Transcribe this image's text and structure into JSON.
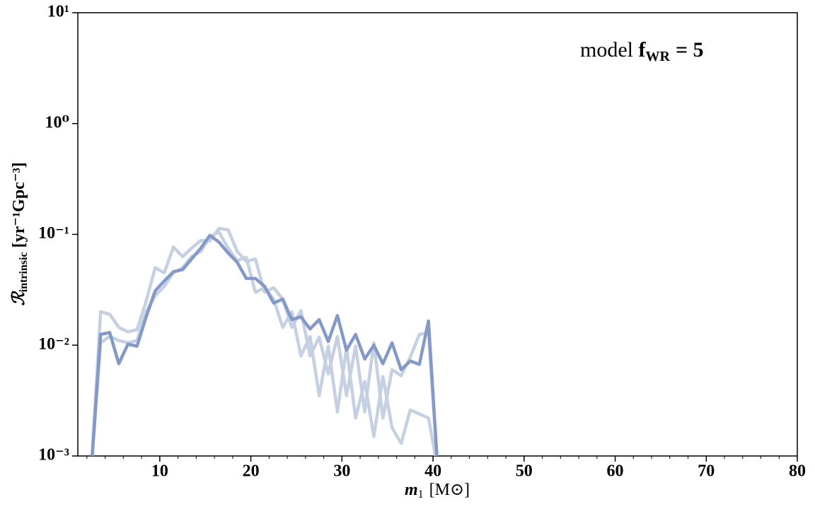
{
  "chart_data": {
    "type": "line",
    "annotation": {
      "prefix": "model",
      "symbol": "f",
      "subscript": "WR",
      "suffix": "= 5"
    },
    "xlabel": {
      "symbol": "m",
      "subscript": "1",
      "unit": "[M⊙]"
    },
    "ylabel": {
      "symbol": "ℛ",
      "subscript": "intrinsic",
      "unit": "[yr⁻¹Gpc⁻³]"
    },
    "log_y": true,
    "xlim": [
      1,
      80
    ],
    "ylim": [
      0.001,
      10
    ],
    "xticks": [
      10,
      20,
      30,
      40,
      50,
      60,
      70,
      80
    ],
    "xminorticks": [
      2,
      4,
      6,
      8,
      12,
      14,
      16,
      18,
      22,
      24,
      26,
      28,
      32,
      34,
      36,
      38,
      42,
      44,
      46,
      48,
      52,
      54,
      56,
      58,
      62,
      64,
      66,
      68,
      72,
      74,
      76,
      78
    ],
    "yticks": [
      {
        "value": 0.001,
        "label": "10⁻³"
      },
      {
        "value": 0.01,
        "label": "10⁻²"
      },
      {
        "value": 0.1,
        "label": "10⁻¹"
      },
      {
        "value": 1,
        "label": "10⁰"
      },
      {
        "value": 10,
        "label": "10¹"
      }
    ],
    "x": [
      2.5,
      3.5,
      4.5,
      5.5,
      6.5,
      7.5,
      8.5,
      9.5,
      10.5,
      11.5,
      12.5,
      13.5,
      14.5,
      15.5,
      16.5,
      17.5,
      18.5,
      19.5,
      20.5,
      21.5,
      22.5,
      23.5,
      24.5,
      25.5,
      26.5,
      27.5,
      28.5,
      29.5,
      30.5,
      31.5,
      32.5,
      33.5,
      34.5,
      35.5,
      36.5,
      37.5,
      38.5,
      39.5,
      40.5
    ],
    "series": [
      {
        "color": "#c5d0e3",
        "values": [
          0.0008,
          0.02,
          0.019,
          0.0145,
          0.0132,
          0.0138,
          0.025,
          0.05,
          0.045,
          0.077,
          0.063,
          0.075,
          0.088,
          0.087,
          0.113,
          0.11,
          0.07,
          0.057,
          0.06,
          0.03,
          0.033,
          0.026,
          0.0145,
          0.0205,
          0.008,
          0.0118,
          0.0055,
          0.012,
          0.0035,
          0.0098,
          0.0025,
          0.0105,
          0.0022,
          0.006,
          0.0053,
          0.0078,
          0.0125,
          0.013,
          0.0008
        ]
      },
      {
        "color": "#c5d0e3",
        "values": [
          0.0008,
          0.0105,
          0.012,
          0.011,
          0.0105,
          0.011,
          0.02,
          0.028,
          0.034,
          0.045,
          0.05,
          0.063,
          0.07,
          0.095,
          0.105,
          0.075,
          0.058,
          0.062,
          0.03,
          0.033,
          0.026,
          0.0145,
          0.02,
          0.008,
          0.012,
          0.0035,
          0.0098,
          0.0025,
          0.0095,
          0.0022,
          0.0047,
          0.0015,
          0.0052,
          0.0018,
          0.0013,
          0.0026,
          0.0024,
          0.0022,
          0.0008
        ]
      },
      {
        "color": "#8499c8",
        "values": [
          0.0008,
          0.0125,
          0.013,
          0.0068,
          0.0102,
          0.0098,
          0.018,
          0.031,
          0.038,
          0.046,
          0.048,
          0.06,
          0.075,
          0.098,
          0.085,
          0.068,
          0.056,
          0.04,
          0.04,
          0.034,
          0.024,
          0.026,
          0.017,
          0.018,
          0.014,
          0.017,
          0.0108,
          0.0185,
          0.009,
          0.0125,
          0.0075,
          0.01,
          0.0068,
          0.0105,
          0.006,
          0.0072,
          0.0067,
          0.0165,
          0.0008
        ]
      }
    ]
  }
}
